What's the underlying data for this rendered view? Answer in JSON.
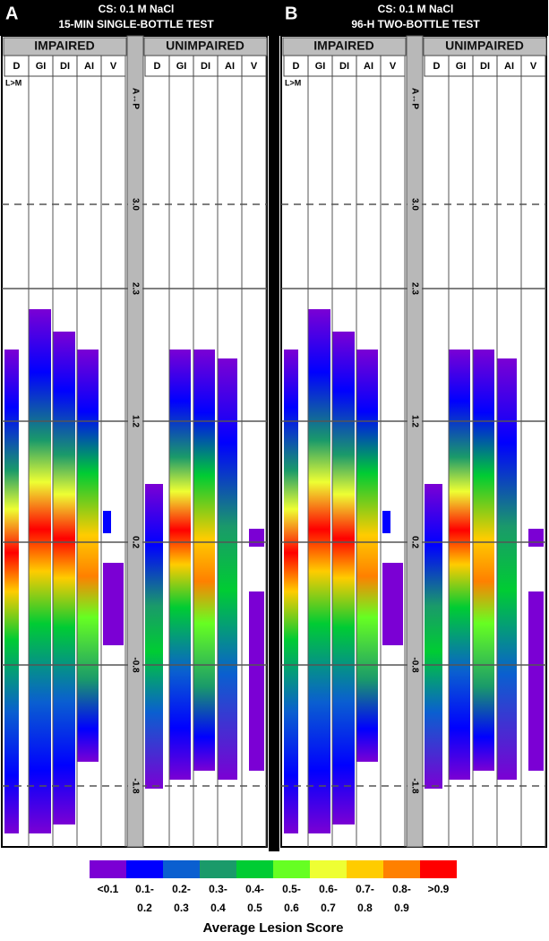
{
  "panels": [
    {
      "letter": "A",
      "title_line1": "CS: 0.1 M NaCl",
      "title_line2": "15-MIN SINGLE-BOTTLE TEST",
      "groups": [
        {
          "label": "IMPAIRED",
          "columns": [
            "D",
            "GI",
            "DI",
            "AI",
            "V"
          ]
        },
        {
          "label": "UNIMPAIRED",
          "columns": [
            "D",
            "GI",
            "DI",
            "AI",
            "V"
          ]
        }
      ],
      "side_label": "L>M",
      "axis_label": "A↔P",
      "levels": [
        "3.0",
        "2.3",
        "1.2",
        "0.2",
        "-0.8",
        "-1.8"
      ]
    },
    {
      "letter": "B",
      "title_line1": "CS: 0.1 M NaCl",
      "title_line2": "96-H TWO-BOTTLE TEST",
      "groups": [
        {
          "label": "IMPAIRED",
          "columns": [
            "D",
            "GI",
            "DI",
            "AI",
            "V"
          ]
        },
        {
          "label": "UNIMPAIRED",
          "columns": [
            "D",
            "GI",
            "DI",
            "AI",
            "V"
          ]
        }
      ],
      "side_label": "L>M",
      "axis_label": "A↔P",
      "levels": [
        "3.0",
        "2.3",
        "1.2",
        "0.2",
        "-0.8",
        "-1.8"
      ]
    }
  ],
  "legend": {
    "top": [
      "<0.1",
      "0.1-",
      "0.2-",
      "0.3-",
      "0.4-",
      "0.5-",
      "0.6-",
      "0.7-",
      "0.8-",
      ">0.9"
    ],
    "bottom": [
      "0.2",
      "0.3",
      "0.4",
      "0.5",
      "0.6",
      "0.7",
      "0.8",
      "0.9"
    ],
    "title": "Average Lesion Score"
  }
}
